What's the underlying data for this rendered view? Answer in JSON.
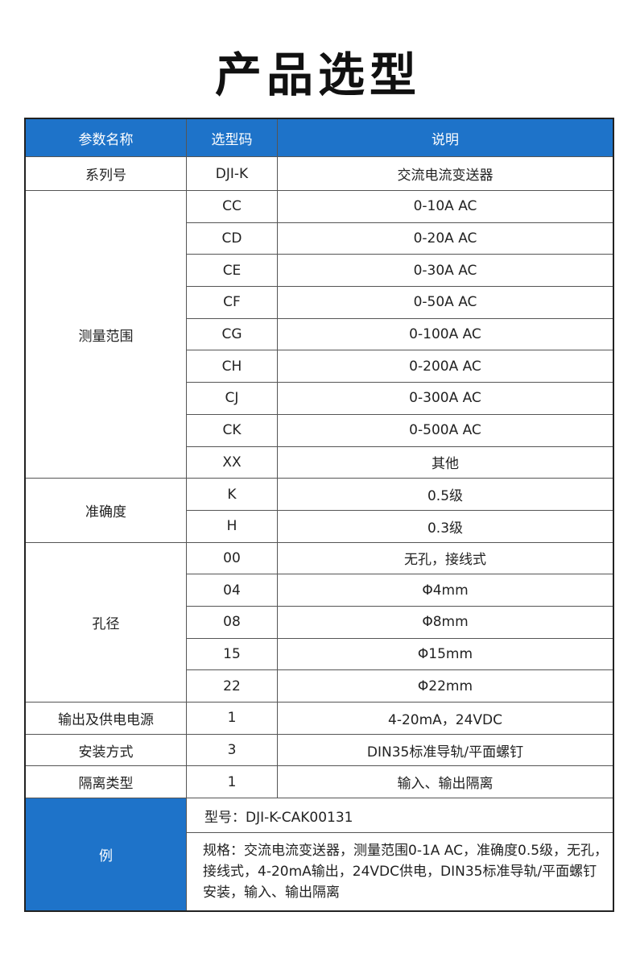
{
  "title": "产品选型",
  "colors": {
    "header_bg": "#1e73c9",
    "header_text": "#ffffff"
  },
  "headers": [
    "参数名称",
    "选型码",
    "说明"
  ],
  "groups": [
    {
      "name": "系列号",
      "rows": [
        [
          "DJI-K",
          "交流电流变送器"
        ]
      ]
    },
    {
      "name": "测量范围",
      "rows": [
        [
          "CC",
          "0-10A AC"
        ],
        [
          "CD",
          "0-20A AC"
        ],
        [
          "CE",
          "0-30A AC"
        ],
        [
          "CF",
          "0-50A AC"
        ],
        [
          "CG",
          "0-100A AC"
        ],
        [
          "CH",
          "0-200A AC"
        ],
        [
          "CJ",
          "0-300A AC"
        ],
        [
          "CK",
          "0-500A AC"
        ],
        [
          "XX",
          "其他"
        ]
      ]
    },
    {
      "name": "准确度",
      "rows": [
        [
          "K",
          "0.5级"
        ],
        [
          "H",
          "0.3级"
        ]
      ]
    },
    {
      "name": "孔径",
      "rows": [
        [
          "00",
          "无孔，接线式"
        ],
        [
          "04",
          "Φ4mm"
        ],
        [
          "08",
          "Φ8mm"
        ],
        [
          "15",
          "Φ15mm"
        ],
        [
          "22",
          "Φ22mm"
        ]
      ]
    },
    {
      "name": "输出及供电电源",
      "rows": [
        [
          "1",
          "4-20mA，24VDC"
        ]
      ]
    },
    {
      "name": "安装方式",
      "rows": [
        [
          "3",
          "DIN35标准导轨/平面螺钉"
        ]
      ]
    },
    {
      "name": "隔离类型",
      "rows": [
        [
          "1",
          "输入、输出隔离"
        ]
      ]
    }
  ],
  "example": {
    "label": "例",
    "model": "型号：DJI-K-CAK00131",
    "spec": "规格：交流电流变送器，测量范围0-1A AC，准确度0.5级，无孔，接线式，4-20mA输出，24VDC供电，DIN35标准导轨/平面螺钉安装，输入、输出隔离"
  }
}
